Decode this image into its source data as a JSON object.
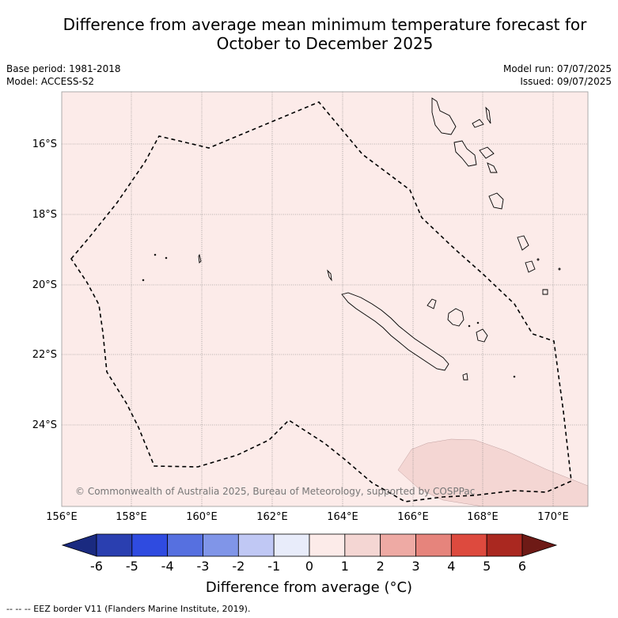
{
  "title": "Difference from average mean minimum temperature forecast for\nOctober to December 2025",
  "base_period": "Base period: 1981-2018",
  "model": "Model: ACCESS-S2",
  "model_run": "Model run: 07/07/2025",
  "issued": "Issued: 09/07/2025",
  "credit": "© Commonwealth of Australia 2025, Bureau of Meteorology, supported by COSPPac",
  "lat_labels": [
    "16°S",
    "18°S",
    "20°S",
    "22°S",
    "24°S"
  ],
  "lon_labels": [
    "156°E",
    "158°E",
    "160°E",
    "162°E",
    "164°E",
    "166°E",
    "168°E",
    "170°E"
  ],
  "colorbar": {
    "ticks": [
      "-6",
      "-5",
      "-4",
      "-3",
      "-2",
      "-1",
      "0",
      "1",
      "2",
      "3",
      "4",
      "5",
      "6"
    ],
    "label": "Difference from average (°C)",
    "colors": [
      "#1a2a80",
      "#2a3fb0",
      "#2f4be0",
      "#5670e0",
      "#8095e8",
      "#c0c8f4",
      "#e8ecfa",
      "#fcebe9",
      "#f4d6d3",
      "#eeaaa4",
      "#e6847c",
      "#dd4a3e",
      "#aa2820",
      "#6e1a16"
    ]
  },
  "map_colors": {
    "background": "#fcebe9",
    "patch": "#f4d6d3"
  },
  "legend_text": "--  --  -- EEZ border V11 (Flanders Marine Institute, 2019)."
}
